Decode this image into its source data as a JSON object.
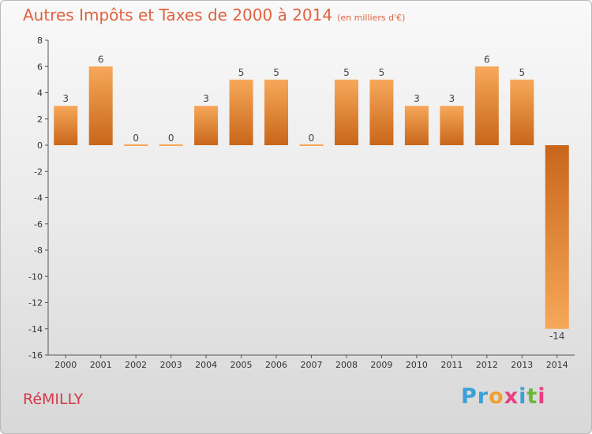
{
  "title": "Autres Impôts et Taxes de 2000 à 2014",
  "unit": "(en milliers d'€)",
  "commune": "RéMILLY",
  "logo": {
    "letters": [
      "P",
      "r",
      "o",
      "x",
      "i",
      "t",
      "i"
    ],
    "colors": [
      "#3aa0d8",
      "#3aa0d8",
      "#f0a030",
      "#e84080",
      "#3aa0d8",
      "#6cb83a",
      "#e84080"
    ]
  },
  "colors": {
    "title": "#e0623f",
    "commune": "#d43a4a",
    "bar_dark": "#c8661a",
    "bar_light": "#f7a85a"
  },
  "chart_data": {
    "type": "bar",
    "title": "Autres Impôts et Taxes de 2000 à 2014",
    "categories": [
      "2000",
      "2001",
      "2002",
      "2003",
      "2004",
      "2005",
      "2006",
      "2007",
      "2008",
      "2009",
      "2010",
      "2011",
      "2012",
      "2013",
      "2014"
    ],
    "values": [
      3,
      6,
      0,
      0,
      3,
      5,
      5,
      0,
      5,
      5,
      3,
      3,
      6,
      5,
      -14
    ],
    "ylim": [
      -16,
      8
    ],
    "yticks": [
      8,
      6,
      4,
      2,
      0,
      -2,
      -4,
      -6,
      -8,
      -10,
      -12,
      -14,
      -16
    ],
    "grid": false,
    "legend": "none"
  }
}
